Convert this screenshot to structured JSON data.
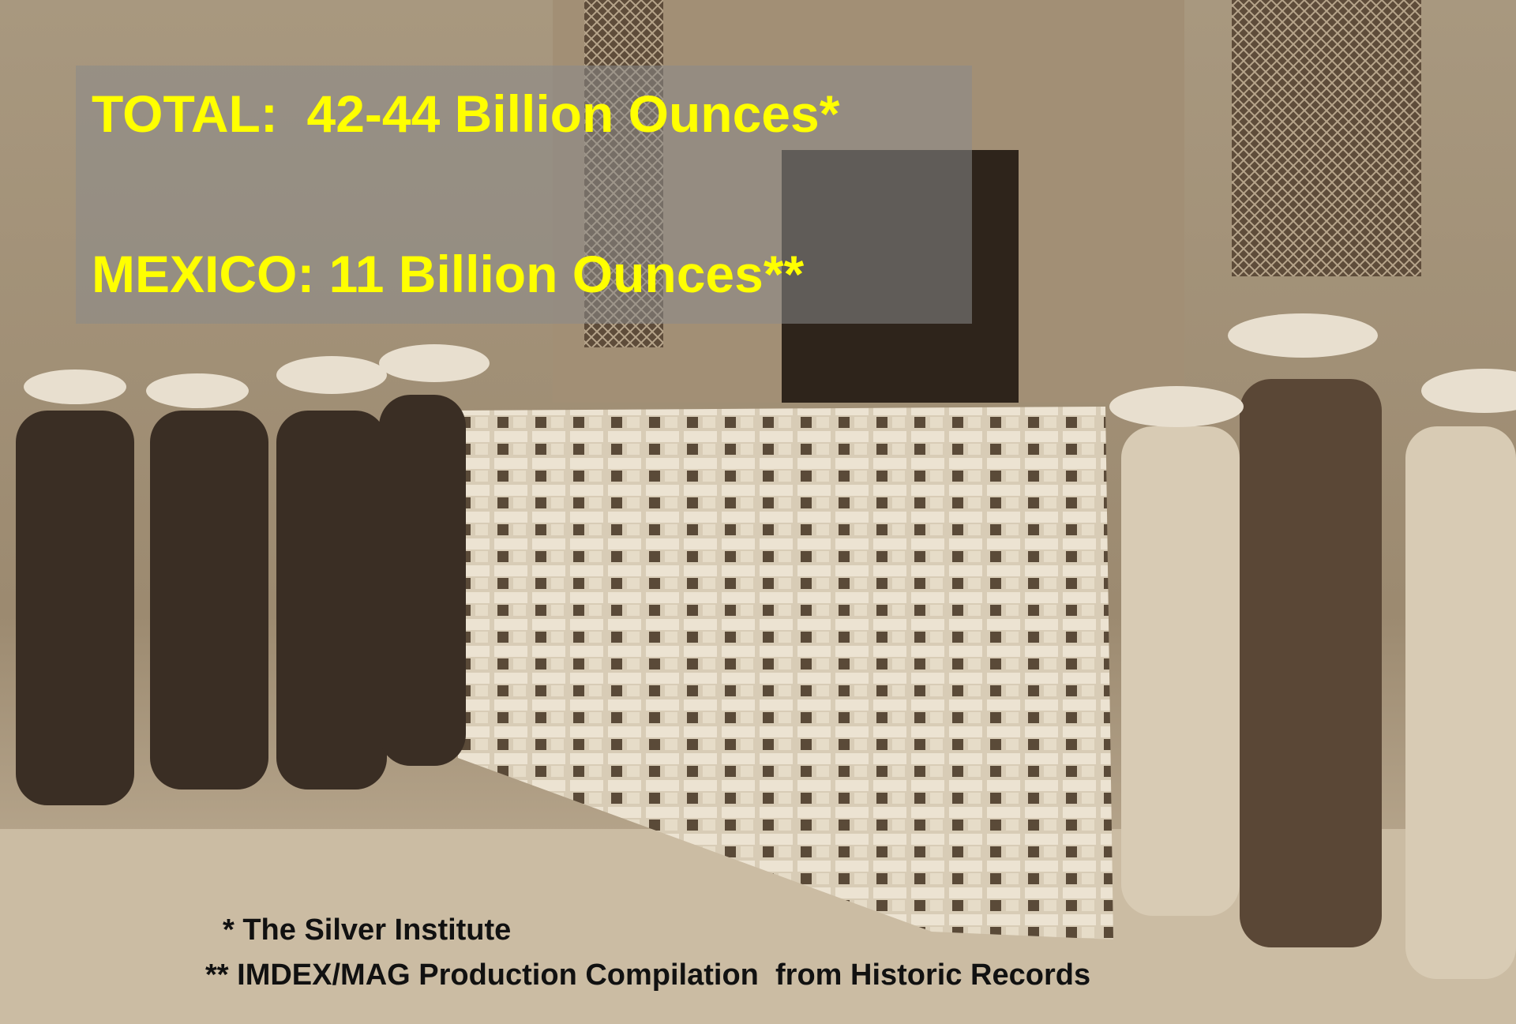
{
  "overlay": {
    "total": "TOTAL:  42-44 Billion Ounces*",
    "mexico": "MEXICO: 11 Billion Ounces**"
  },
  "footnotes": [
    "* The Silver Institute",
    "** IMDEX/MAG Production Compilation  from Historic Records"
  ]
}
